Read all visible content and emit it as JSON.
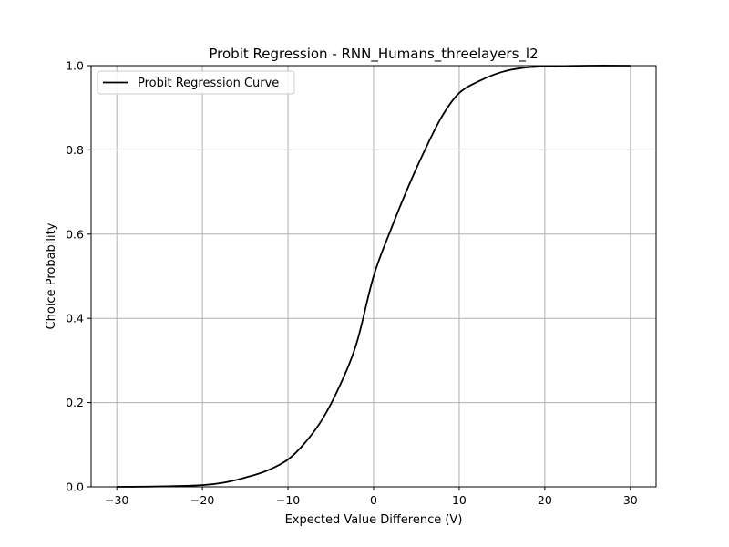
{
  "chart_data": {
    "type": "line",
    "title": "Probit Regression - RNN_Humans_threelayers_l2",
    "xlabel": "Expected Value Difference (V)",
    "ylabel": "Choice Probability",
    "xlim": [
      -33,
      33
    ],
    "ylim": [
      0,
      1
    ],
    "xticks": [
      -30,
      -20,
      -10,
      0,
      10,
      20,
      30
    ],
    "xtick_labels": [
      "−30",
      "−20",
      "−10",
      "0",
      "10",
      "20",
      "30"
    ],
    "yticks": [
      0,
      0.2,
      0.4,
      0.6,
      0.8,
      1.0
    ],
    "ytick_labels": [
      "0.0",
      "0.2",
      "0.4",
      "0.6",
      "0.8",
      "1.0"
    ],
    "grid": true,
    "legend_position": "upper-left",
    "series": [
      {
        "name": "Probit Regression Curve",
        "color": "#000000",
        "x": [
          -30,
          -25,
          -20,
          -17.5,
          -15,
          -12.5,
          -10,
          -8,
          -6,
          -4,
          -2,
          0,
          2,
          4,
          6,
          8,
          10,
          12.5,
          15,
          17.5,
          20,
          25,
          30
        ],
        "y": [
          0.0,
          0.001,
          0.004,
          0.01,
          0.022,
          0.038,
          0.065,
          0.105,
          0.16,
          0.238,
          0.34,
          0.5,
          0.61,
          0.71,
          0.8,
          0.88,
          0.935,
          0.965,
          0.985,
          0.995,
          0.998,
          1.0,
          1.0
        ]
      }
    ]
  }
}
